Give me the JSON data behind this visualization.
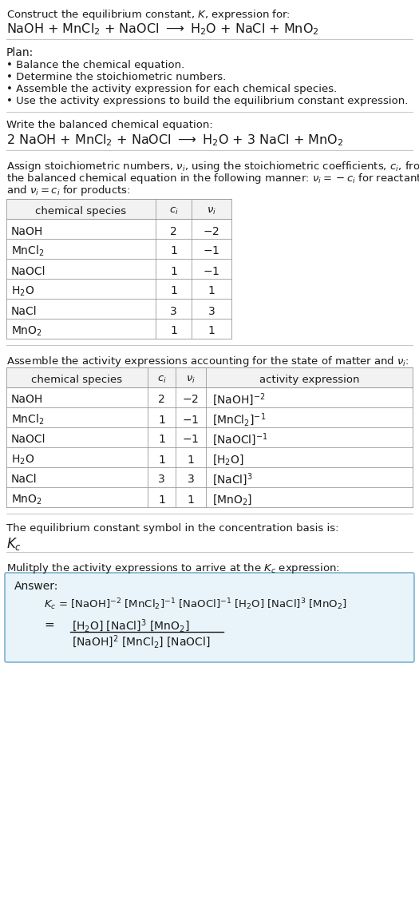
{
  "bg_color": "#ffffff",
  "title_line1": "Construct the equilibrium constant, $K$, expression for:",
  "title_line2": "NaOH + MnCl$_2$ + NaOCl $\\longrightarrow$ H$_2$O + NaCl + MnO$_2$",
  "plan_header": "Plan:",
  "plan_items": [
    "Balance the chemical equation.",
    "Determine the stoichiometric numbers.",
    "Assemble the activity expression for each chemical species.",
    "Use the activity expressions to build the equilibrium constant expression."
  ],
  "balanced_header": "Write the balanced chemical equation:",
  "balanced_eq": "2 NaOH + MnCl$_2$ + NaOCl $\\longrightarrow$ H$_2$O + 3 NaCl + MnO$_2$",
  "stoich_header_lines": [
    "Assign stoichiometric numbers, $\\nu_i$, using the stoichiometric coefficients, $c_i$, from",
    "the balanced chemical equation in the following manner: $\\nu_i = -c_i$ for reactants",
    "and $\\nu_i = c_i$ for products:"
  ],
  "table1_headers": [
    "chemical species",
    "$c_i$",
    "$\\nu_i$"
  ],
  "table1_data": [
    [
      "NaOH",
      "2",
      "$-2$"
    ],
    [
      "MnCl$_2$",
      "1",
      "$-1$"
    ],
    [
      "NaOCl",
      "1",
      "$-1$"
    ],
    [
      "H$_2$O",
      "1",
      "1"
    ],
    [
      "NaCl",
      "3",
      "3"
    ],
    [
      "MnO$_2$",
      "1",
      "1"
    ]
  ],
  "activity_header": "Assemble the activity expressions accounting for the state of matter and $\\nu_i$:",
  "table2_headers": [
    "chemical species",
    "$c_i$",
    "$\\nu_i$",
    "activity expression"
  ],
  "table2_data": [
    [
      "NaOH",
      "2",
      "$-2$",
      "[NaOH]$^{-2}$"
    ],
    [
      "MnCl$_2$",
      "1",
      "$-1$",
      "[MnCl$_2$]$^{-1}$"
    ],
    [
      "NaOCl",
      "1",
      "$-1$",
      "[NaOCl]$^{-1}$"
    ],
    [
      "H$_2$O",
      "1",
      "1",
      "[H$_2$O]"
    ],
    [
      "NaCl",
      "3",
      "3",
      "[NaCl]$^3$"
    ],
    [
      "MnO$_2$",
      "1",
      "1",
      "[MnO$_2$]"
    ]
  ],
  "kc_header": "The equilibrium constant symbol in the concentration basis is:",
  "kc_symbol": "$K_c$",
  "multiply_header": "Mulitply the activity expressions to arrive at the $K_c$ expression:",
  "answer_label": "Answer:",
  "answer_line1": "$K_c$ = [NaOH]$^{-2}$ [MnCl$_2$]$^{-1}$ [NaOCl]$^{-1}$ [H$_2$O] [NaCl]$^3$ [MnO$_2$]",
  "answer_numerator": "[H$_2$O] [NaCl]$^3$ [MnO$_2$]",
  "answer_denominator": "[NaOH]$^2$ [MnCl$_2$] [NaOCl]"
}
